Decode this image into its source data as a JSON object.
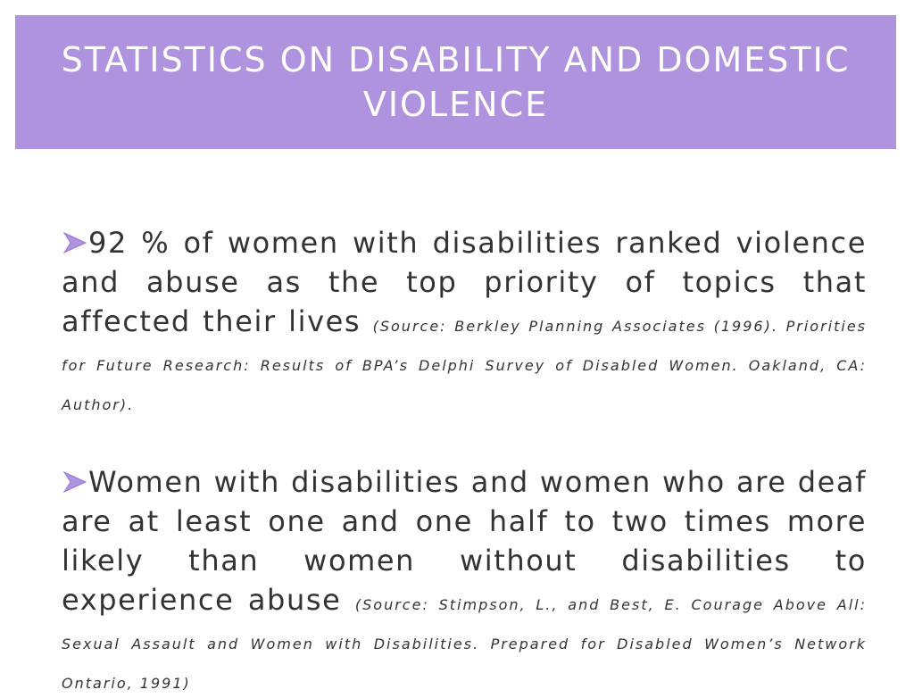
{
  "slide": {
    "title": "STATISTICS ON DISABILITY AND DOMESTIC VIOLENCE",
    "accent_color": "#b093de",
    "bullet_icon": "arrow-bullet-icon"
  },
  "bullets": [
    {
      "text": "92 % of women with disabilities ranked violence and abuse as the top priority of topics that affected their lives",
      "citation": "(Source: Berkley Planning Associates (1996). Priorities for Future Research: Results of BPA’s Delphi Survey of Disabled Women. Oakland, CA: Author)."
    },
    {
      "text": "Women with disabilities and women who are deaf are at least one and one half to two times more likely than women without disabilities to experience abuse",
      "citation": "(Source: Stimpson, L., and Best, E. Courage Above All: Sexual Assault and Women with Disabilities. Prepared for Disabled Women’s Network Ontario, 1991)"
    }
  ]
}
